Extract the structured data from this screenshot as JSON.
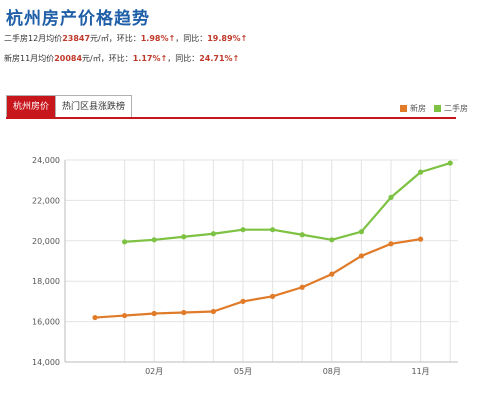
{
  "header": {
    "title": "杭州房产价格趋势",
    "resale_line": {
      "prefix": "二手房12月均价",
      "price": "23847",
      "unit": "元/㎡，环比：",
      "mom": "1.98%↑",
      "yoy_label": "，同比：",
      "yoy": "19.89%↑"
    },
    "new_line": {
      "prefix": "新房11月均价",
      "price": "20084",
      "unit": "元/㎡，环比：",
      "mom": "1.17%↑",
      "yoy_label": "，同比：",
      "yoy": "24.71%↑"
    }
  },
  "tabs": [
    {
      "label": "杭州房价",
      "active": true
    },
    {
      "label": "热门区县涨跌榜",
      "active": false
    }
  ],
  "colors": {
    "new": "#e07b2a",
    "resale": "#7dc242",
    "accent": "#c8161d",
    "grid": "#e3e3e3"
  },
  "chart_data": {
    "type": "line",
    "x_tick_labels": [
      "02月",
      "05月",
      "08月",
      "11月"
    ],
    "ylim": [
      14000,
      24000
    ],
    "y_ticks": [
      "14,000",
      "16,000",
      "18,000",
      "20,000",
      "22,000",
      "24,000"
    ],
    "grid": true,
    "legend_position": "top-right",
    "series": [
      {
        "name": "新房",
        "color": "#e07b2a",
        "points": [
          {
            "month": 0,
            "value": 16200
          },
          {
            "month": 1,
            "value": 16300
          },
          {
            "month": 2,
            "value": 16400
          },
          {
            "month": 3,
            "value": 16450
          },
          {
            "month": 4,
            "value": 16500
          },
          {
            "month": 5,
            "value": 17000
          },
          {
            "month": 6,
            "value": 17250
          },
          {
            "month": 7,
            "value": 17700
          },
          {
            "month": 8,
            "value": 18350
          },
          {
            "month": 9,
            "value": 19250
          },
          {
            "month": 10,
            "value": 19850
          },
          {
            "month": 11,
            "value": 20084
          }
        ]
      },
      {
        "name": "二手房",
        "color": "#7dc242",
        "points": [
          {
            "month": 1,
            "value": 19950
          },
          {
            "month": 2,
            "value": 20050
          },
          {
            "month": 3,
            "value": 20200
          },
          {
            "month": 4,
            "value": 20350
          },
          {
            "month": 5,
            "value": 20550
          },
          {
            "month": 6,
            "value": 20550
          },
          {
            "month": 7,
            "value": 20300
          },
          {
            "month": 8,
            "value": 20050
          },
          {
            "month": 9,
            "value": 20450
          },
          {
            "month": 10,
            "value": 22150
          },
          {
            "month": 11,
            "value": 23400
          },
          {
            "month": 12,
            "value": 23847
          }
        ]
      }
    ]
  }
}
